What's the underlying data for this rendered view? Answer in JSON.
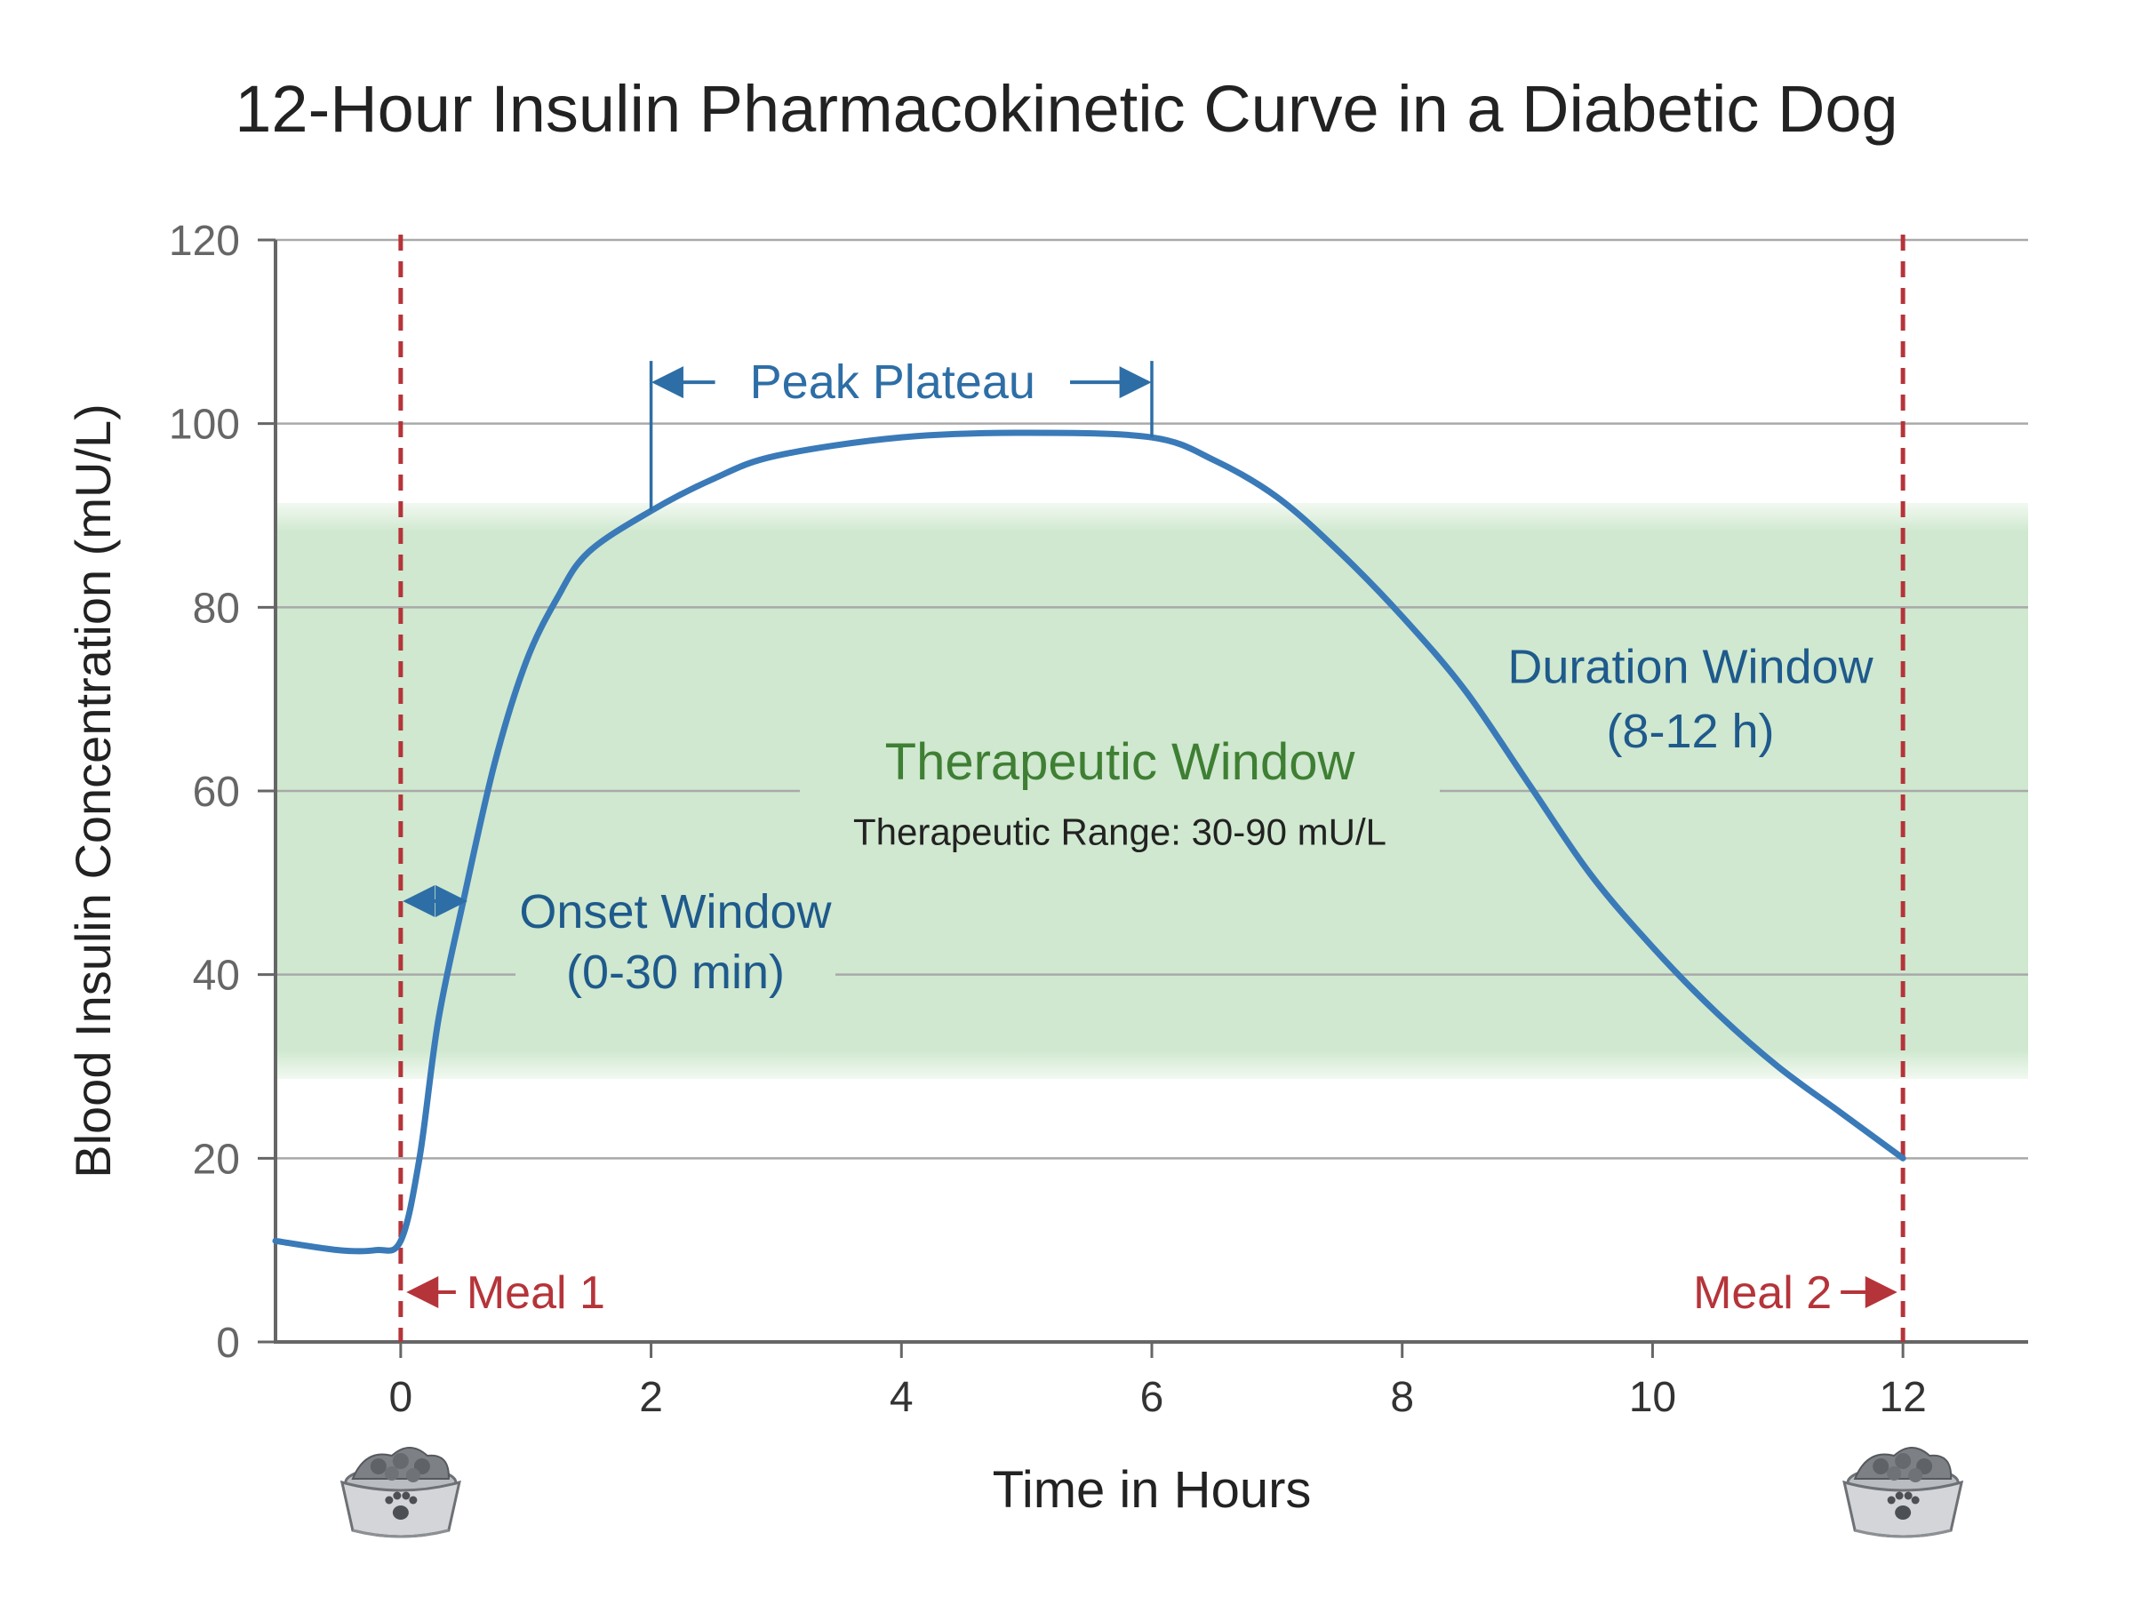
{
  "chart_data": {
    "type": "line",
    "title": "12-Hour Insulin Pharmacokinetic Curve in a Diabetic Dog",
    "xlabel": "Time in Hours",
    "ylabel": "Blood Insulin Concentration (mU/L)",
    "xlim": [
      -1,
      13
    ],
    "ylim": [
      0,
      120
    ],
    "x_ticks": [
      0,
      2,
      4,
      6,
      8,
      10,
      12
    ],
    "y_ticks": [
      0,
      20,
      40,
      60,
      80,
      100,
      120
    ],
    "x_tick_labels": [
      "0",
      "2",
      "4",
      "6",
      "8",
      "10",
      "12"
    ],
    "y_tick_labels": [
      "0",
      "20",
      "40",
      "60",
      "80",
      "100",
      "120"
    ],
    "grid": "horizontal",
    "series": [
      {
        "color": "#3a7ab8",
        "x": [
          -1,
          -0.5,
          -0.2,
          0,
          0.15,
          0.3,
          0.5,
          0.75,
          1,
          1.25,
          1.5,
          2,
          2.5,
          3,
          4,
          5,
          6,
          6.5,
          7,
          7.5,
          8,
          8.5,
          9,
          9.5,
          10,
          10.5,
          11,
          11.5,
          12
        ],
        "y": [
          11,
          10,
          10,
          11,
          20,
          35,
          48,
          63,
          74,
          81,
          86,
          90.5,
          94,
          96.5,
          98.5,
          99,
          98.5,
          96,
          92,
          86,
          79,
          71,
          61,
          51,
          43,
          36,
          30,
          25,
          20
        ]
      }
    ],
    "therapeutic_band": {
      "y_range": [
        30,
        90
      ],
      "color": "#cfe8cf",
      "label": "Therapeutic Window",
      "sublabel": "Therapeutic Range: 30-90 mU/L",
      "label_color": "#3f7f34"
    },
    "meal_lines": [
      {
        "x": 0,
        "label": "Meal 1",
        "arrow": "←",
        "color": "#b5343a"
      },
      {
        "x": 12,
        "label": "Meal 2",
        "arrow": "→",
        "color": "#b5343a"
      }
    ],
    "annotations": {
      "peak_plateau": {
        "label": "Peak Plateau",
        "x_range": [
          2,
          6
        ],
        "color": "#2e6ea6"
      },
      "onset": {
        "line1": "Onset Window",
        "line2": "(0-30 min)",
        "x_range": [
          0,
          0.55
        ],
        "y": 48,
        "color": "#1f5a8c"
      },
      "duration": {
        "line1": "Duration Window",
        "line2": "(8-12 h)",
        "color": "#1f5a8c"
      }
    },
    "icons": [
      "dog-food-bowl-icon",
      "dog-food-bowl-icon"
    ]
  }
}
